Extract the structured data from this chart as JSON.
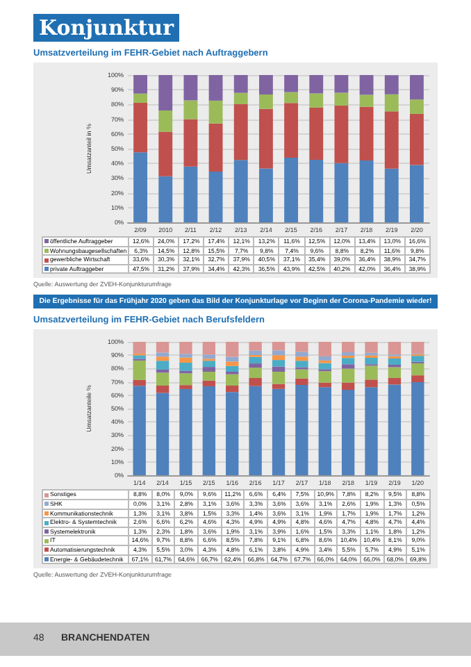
{
  "chart_data": [
    {
      "type": "bar",
      "title": "Konjunktur",
      "subtitle": "Umsatzverteilung im FEHR-Gebiet nach Auftraggebern",
      "ylabel": "Umsatzanteil in %",
      "stacked": true,
      "grid": "y",
      "legend": "bottom",
      "categories": [
        "2/09",
        "2010",
        "2/11",
        "2/12",
        "2/13",
        "2/14",
        "2/15",
        "2/16",
        "2/17",
        "2/18",
        "2/19",
        "2/20"
      ],
      "ylim": [
        0,
        100
      ],
      "yticks": [
        {
          "value": 0,
          "label": "0%"
        },
        {
          "value": 10,
          "label": "10%"
        },
        {
          "value": 20,
          "label": "20%"
        },
        {
          "value": 30,
          "label": "30%"
        },
        {
          "value": 40,
          "label": "40%"
        },
        {
          "value": 50,
          "label": "50%"
        },
        {
          "value": 60,
          "label": "60%"
        },
        {
          "value": 70,
          "label": "70%"
        },
        {
          "value": 80,
          "label": "80%"
        },
        {
          "value": 90,
          "label": "90%"
        },
        {
          "value": 100,
          "label": "100%"
        }
      ],
      "series": [
        {
          "name": "private Auftraggeber",
          "color": "#4f81bd",
          "values": [
            47.5,
            31.2,
            37.9,
            34.4,
            42.3,
            36.5,
            43.9,
            42.5,
            40.2,
            42.0,
            36.4,
            38.9
          ],
          "value_labels": [
            "47,5%",
            "31,2%",
            "37,9%",
            "34,4%",
            "42,3%",
            "36,5%",
            "43,9%",
            "42,5%",
            "40,2%",
            "42,0%",
            "36,4%",
            "38,9%"
          ]
        },
        {
          "name": "gewerbliche Wirtschaft",
          "color": "#c0504d",
          "values": [
            33.6,
            30.3,
            32.1,
            32.7,
            37.9,
            40.5,
            37.1,
            35.4,
            39.0,
            36.4,
            38.9,
            34.7
          ],
          "value_labels": [
            "33,6%",
            "30,3%",
            "32,1%",
            "32,7%",
            "37,9%",
            "40,5%",
            "37,1%",
            "35,4%",
            "39,0%",
            "36,4%",
            "38,9%",
            "34,7%"
          ]
        },
        {
          "name": "Wohnungsbaugesellschaften",
          "color": "#9bbb59",
          "values": [
            6.3,
            14.5,
            12.8,
            15.5,
            7.7,
            9.8,
            7.4,
            9.6,
            8.8,
            8.2,
            11.6,
            9.8
          ],
          "value_labels": [
            "6,3%",
            "14,5%",
            "12,8%",
            "15,5%",
            "7,7%",
            "9,8%",
            "7,4%",
            "9,6%",
            "8,8%",
            "8,2%",
            "11,6%",
            "9,8%"
          ]
        },
        {
          "name": "öffentliche Auftraggeber",
          "color": "#8064a2",
          "values": [
            12.6,
            24.0,
            17.2,
            17.4,
            12.1,
            13.2,
            11.6,
            12.5,
            12.0,
            13.4,
            13.0,
            16.6
          ],
          "value_labels": [
            "12,6%",
            "24,0%",
            "17,2%",
            "17,4%",
            "12,1%",
            "13,2%",
            "11,6%",
            "12,5%",
            "12,0%",
            "13,4%",
            "13,0%",
            "16,6%"
          ]
        }
      ],
      "annotations": [
        "Quelle: Auswertung der ZVEH-Konjunkturumfrage",
        "Die Ergebnisse für das Frühjahr 2020 geben das Bild der Konjunkturlage vor Beginn der Corona-Pandemie wieder!"
      ]
    },
    {
      "type": "bar",
      "title": "Umsatzverteilung im FEHR-Gebiet nach Berufsfeldern",
      "ylabel": "Umsatzanteile %",
      "stacked": true,
      "grid": "y",
      "legend": "bottom",
      "categories": [
        "1/14",
        "2/14",
        "1/15",
        "2/15",
        "1/16",
        "2/16",
        "1/17",
        "2/17",
        "1/18",
        "2/18",
        "1/19",
        "2/19",
        "1/20"
      ],
      "ylim": [
        0,
        100
      ],
      "yticks": [
        {
          "value": 0,
          "label": "0%"
        },
        {
          "value": 10,
          "label": "10%"
        },
        {
          "value": 20,
          "label": "20%"
        },
        {
          "value": 30,
          "label": "30%"
        },
        {
          "value": 40,
          "label": "40%"
        },
        {
          "value": 50,
          "label": "50%"
        },
        {
          "value": 60,
          "label": "60%"
        },
        {
          "value": 70,
          "label": "70%"
        },
        {
          "value": 80,
          "label": "80%"
        },
        {
          "value": 90,
          "label": "90%"
        },
        {
          "value": 100,
          "label": "100%"
        }
      ],
      "series": [
        {
          "name": "Energie- & Gebäudetechnik",
          "color": "#4f81bd",
          "values": [
            67.1,
            61.7,
            64.6,
            66.7,
            62.4,
            66.8,
            64.7,
            67.7,
            66.0,
            64.0,
            66.0,
            68.0,
            69.8
          ],
          "value_labels": [
            "67,1%",
            "61,7%",
            "64,6%",
            "66,7%",
            "62,4%",
            "66,8%",
            "64,7%",
            "67,7%",
            "66,0%",
            "64,0%",
            "66,0%",
            "68,0%",
            "69,8%"
          ]
        },
        {
          "name": "Automatisierungstechnik",
          "color": "#c0504d",
          "values": [
            4.3,
            5.5,
            3.0,
            4.3,
            4.8,
            6.1,
            3.8,
            4.9,
            3.4,
            5.5,
            5.7,
            4.9,
            5.1
          ],
          "value_labels": [
            "4,3%",
            "5,5%",
            "3,0%",
            "4,3%",
            "4,8%",
            "6,1%",
            "3,8%",
            "4,9%",
            "3,4%",
            "5,5%",
            "5,7%",
            "4,9%",
            "5,1%"
          ]
        },
        {
          "name": "IT",
          "color": "#9bbb59",
          "values": [
            14.6,
            9.7,
            8.8,
            6.6,
            8.5,
            7.8,
            9.1,
            6.8,
            8.6,
            10.4,
            10.4,
            8.1,
            9.0
          ],
          "value_labels": [
            "14,6%",
            "9,7%",
            "8,8%",
            "6,6%",
            "8,5%",
            "7,8%",
            "9,1%",
            "6,8%",
            "8,6%",
            "10,4%",
            "10,4%",
            "8,1%",
            "9,0%"
          ]
        },
        {
          "name": "Systemelektronik",
          "color": "#8064a2",
          "values": [
            1.3,
            2.3,
            1.8,
            3.6,
            1.9,
            3.1,
            3.9,
            1.6,
            1.5,
            3.3,
            1.1,
            1.8,
            1.2
          ],
          "value_labels": [
            "1,3%",
            "2,3%",
            "1,8%",
            "3,6%",
            "1,9%",
            "3,1%",
            "3,9%",
            "1,6%",
            "1,5%",
            "3,3%",
            "1,1%",
            "1,8%",
            "1,2%"
          ]
        },
        {
          "name": "Elektro- & Systemtechnik",
          "color": "#4bacc6",
          "values": [
            2.6,
            6.6,
            6.2,
            4.6,
            4.3,
            4.9,
            4.9,
            4.8,
            4.6,
            4.7,
            4.8,
            4.7,
            4.4
          ],
          "value_labels": [
            "2,6%",
            "6,6%",
            "6,2%",
            "4,6%",
            "4,3%",
            "4,9%",
            "4,9%",
            "4,8%",
            "4,6%",
            "4,7%",
            "4,8%",
            "4,7%",
            "4,4%"
          ]
        },
        {
          "name": "Kommunikationstechnik",
          "color": "#f79646",
          "values": [
            1.3,
            3.1,
            3.8,
            1.5,
            3.3,
            1.4,
            3.6,
            3.1,
            1.9,
            1.7,
            1.9,
            1.7,
            1.2
          ],
          "value_labels": [
            "1,3%",
            "3,1%",
            "3,8%",
            "1,5%",
            "3,3%",
            "1,4%",
            "3,6%",
            "3,1%",
            "1,9%",
            "1,7%",
            "1,9%",
            "1,7%",
            "1,2%"
          ]
        },
        {
          "name": "SHK",
          "color": "#93a9cf",
          "values": [
            0.0,
            3.1,
            2.8,
            3.1,
            3.6,
            3.3,
            3.6,
            3.6,
            3.1,
            2.6,
            1.9,
            1.3,
            0.5
          ],
          "value_labels": [
            "0,0%",
            "3,1%",
            "2,8%",
            "3,1%",
            "3,6%",
            "3,3%",
            "3,6%",
            "3,6%",
            "3,1%",
            "2,6%",
            "1,9%",
            "1,3%",
            "0,5%"
          ]
        },
        {
          "name": "Sonstiges",
          "color": "#d99694",
          "values": [
            8.8,
            8.0,
            9.0,
            9.6,
            11.2,
            6.6,
            6.4,
            7.5,
            10.9,
            7.8,
            8.2,
            9.5,
            8.8
          ],
          "value_labels": [
            "8,8%",
            "8,0%",
            "9,0%",
            "9,6%",
            "11,2%",
            "6,6%",
            "6,4%",
            "7,5%",
            "10,9%",
            "7,8%",
            "8,2%",
            "9,5%",
            "8,8%"
          ]
        }
      ],
      "annotations": [
        "Quelle: Auswertung der ZVEH-Konjunkturumfrage",
        "48",
        "BRANCHENDATEN"
      ]
    }
  ]
}
